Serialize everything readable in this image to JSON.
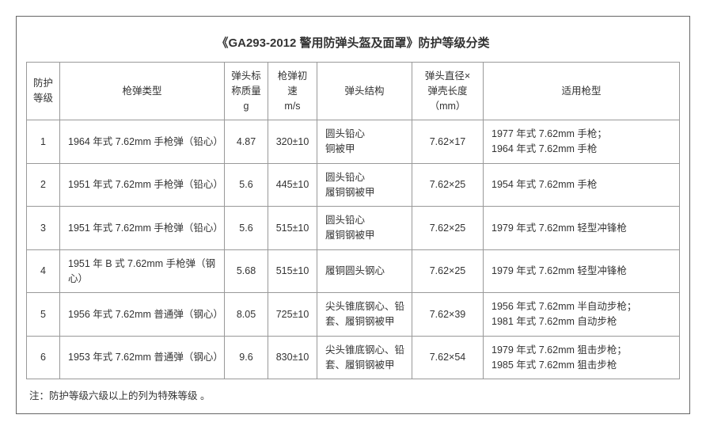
{
  "title": "《GA293-2012 警用防弹头盔及面罩》防护等级分类",
  "columns": {
    "level": "防护\n等级",
    "type": "枪弹类型",
    "mass": "弹头标\n称质量\ng",
    "velocity": "枪弹初速\nm/s",
    "structure": "弹头结构",
    "dimension": "弹头直径×\n弹壳长度\n（mm）",
    "gun": "适用枪型"
  },
  "rows": [
    {
      "level": "1",
      "type": "1964 年式 7.62mm 手枪弹（铅心）",
      "mass": "4.87",
      "velocity": "320±10",
      "structure": "圆头铅心\n铜被甲",
      "dimension": "7.62×17",
      "gun": "1977 年式 7.62mm 手枪；\n1964 年式 7.62mm 手枪"
    },
    {
      "level": "2",
      "type": "1951 年式 7.62mm 手枪弹（铅心）",
      "mass": "5.6",
      "velocity": "445±10",
      "structure": "圆头铅心\n履铜钢被甲",
      "dimension": "7.62×25",
      "gun": "1954 年式 7.62mm 手枪"
    },
    {
      "level": "3",
      "type": "1951 年式 7.62mm 手枪弹（铅心）",
      "mass": "5.6",
      "velocity": "515±10",
      "structure": "圆头铅心\n履铜钢被甲",
      "dimension": "7.62×25",
      "gun": "1979 年式 7.62mm 轻型冲锋枪"
    },
    {
      "level": "4",
      "type": "1951 年 B 式 7.62mm 手枪弹（钢心）",
      "mass": "5.68",
      "velocity": "515±10",
      "structure": "履铜圆头钢心",
      "dimension": "7.62×25",
      "gun": "1979 年式 7.62mm 轻型冲锋枪"
    },
    {
      "level": "5",
      "type": "1956 年式 7.62mm 普通弹（钢心）",
      "mass": "8.05",
      "velocity": "725±10",
      "structure": "尖头锥底钢心、铅套、履铜钢被甲",
      "dimension": "7.62×39",
      "gun": "1956 年式 7.62mm 半自动步枪；\n1981 年式 7.62mm 自动步枪"
    },
    {
      "level": "6",
      "type": "1953 年式 7.62mm 普通弹（钢心）",
      "mass": "9.6",
      "velocity": "830±10",
      "structure": "尖头锥底钢心、铅套、履铜钢被甲",
      "dimension": "7.62×54",
      "gun": "1979 年式 7.62mm 狙击步枪；\n1985 年式 7.62mm 狙击步枪"
    }
  ],
  "note": "注：防护等级六级以上的列为特殊等级 。"
}
